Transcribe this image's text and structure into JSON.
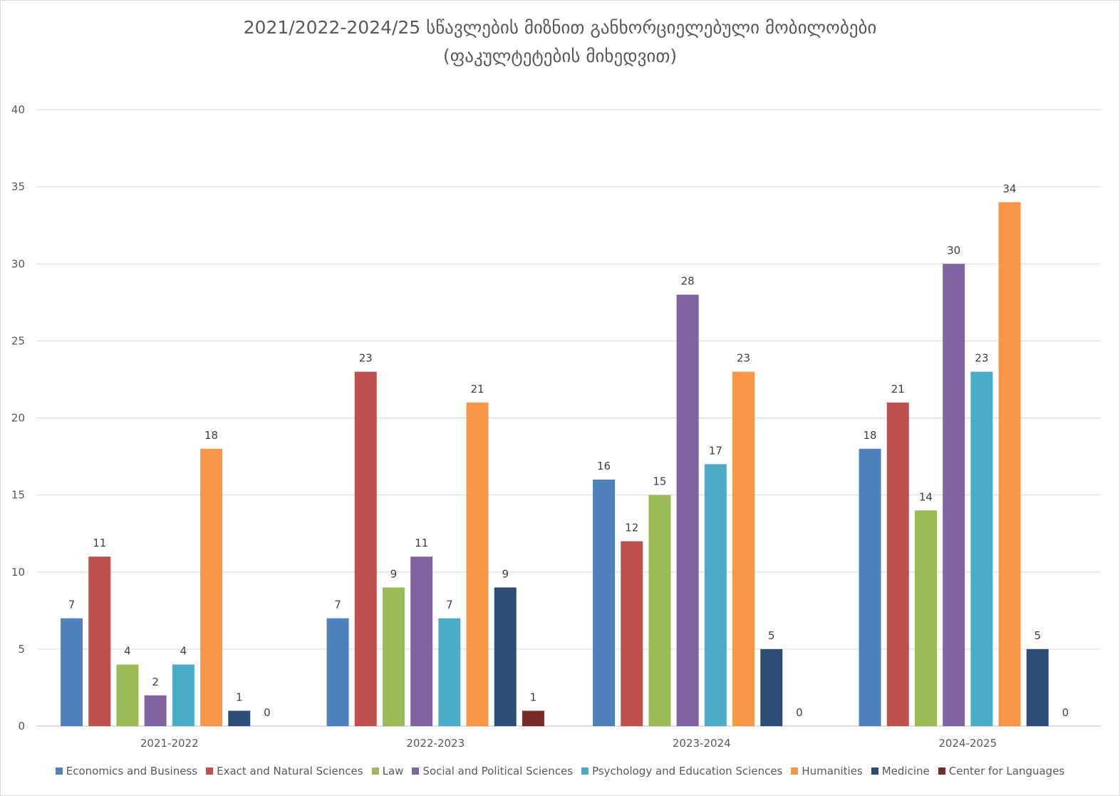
{
  "chart_data": {
    "type": "bar",
    "title": "2021/2022-2024/25 სწავლების მიზნით განხორციელებული მობილობები (ფაკულტეტების მიხედვით)",
    "xlabel": "",
    "ylabel": "",
    "ylim": [
      0,
      40
    ],
    "yticks": [
      "0",
      "5",
      "10",
      "15",
      "20",
      "25",
      "30",
      "35",
      "40"
    ],
    "grid": true,
    "legend_position": "bottom",
    "categories": [
      "2021-2022",
      "2022-2023",
      "2023-2024",
      "2024-2025"
    ],
    "series": [
      {
        "name": "Economics and Business",
        "color": "#4f81bd",
        "values": [
          7,
          7,
          16,
          18
        ]
      },
      {
        "name": "Exact and Natural Sciences",
        "color": "#c0504d",
        "values": [
          11,
          23,
          12,
          21
        ]
      },
      {
        "name": "Law",
        "color": "#9bbb59",
        "values": [
          4,
          9,
          15,
          14
        ]
      },
      {
        "name": "Social and Political Sciences",
        "color": "#8064a2",
        "values": [
          2,
          11,
          28,
          30
        ]
      },
      {
        "name": "Psychology and Education Sciences",
        "color": "#4bacc6",
        "values": [
          4,
          7,
          17,
          23
        ]
      },
      {
        "name": "Humanities",
        "color": "#f79646",
        "values": [
          18,
          21,
          23,
          34
        ]
      },
      {
        "name": "Medicine",
        "color": "#2c4d75",
        "values": [
          1,
          9,
          5,
          5
        ]
      },
      {
        "name": "Center for Languages",
        "color": "#772c2a",
        "values": [
          0,
          1,
          0,
          0
        ]
      }
    ]
  }
}
